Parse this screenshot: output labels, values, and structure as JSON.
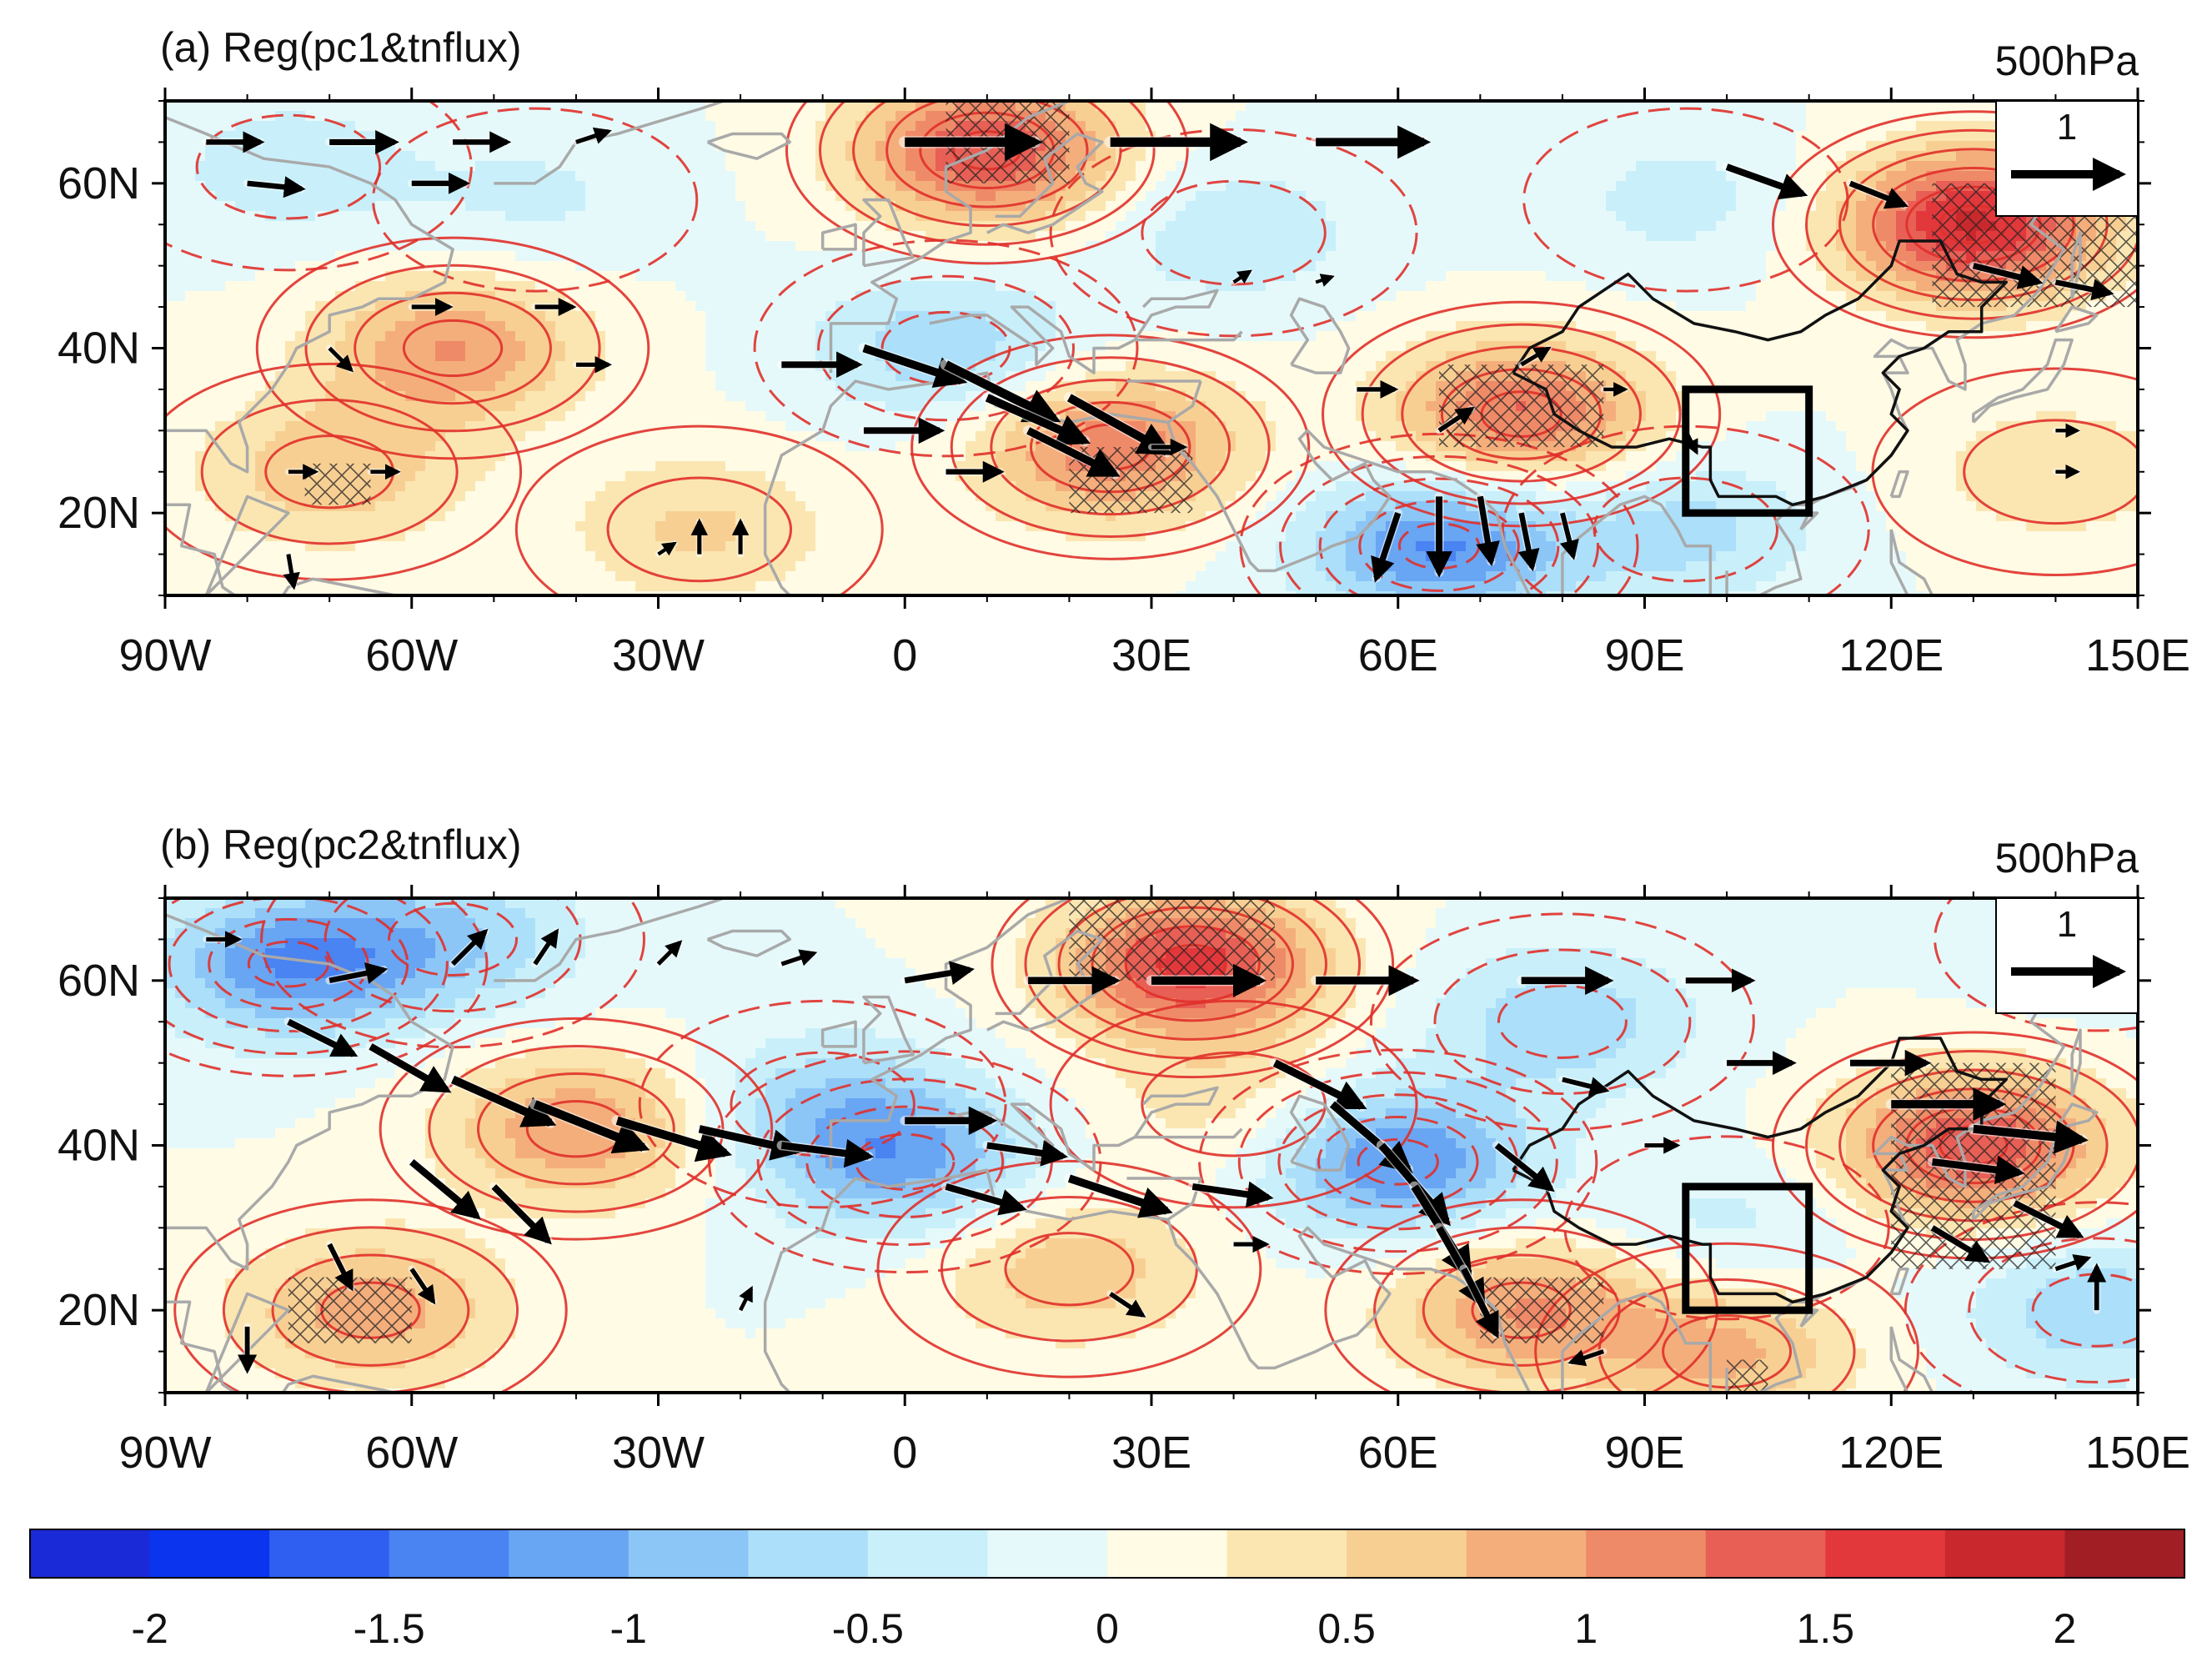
{
  "figure": {
    "colorbar": {
      "colors": [
        "#1a2ad6",
        "#0a34ee",
        "#2f5ff1",
        "#4a83f2",
        "#68a5f3",
        "#8cc6f7",
        "#acdff9",
        "#c9f0fa",
        "#e5f9fb",
        "#fffbe5",
        "#fbe6b2",
        "#f8cf93",
        "#f4ae7c",
        "#ef8a68",
        "#e85f55",
        "#e2383c",
        "#c9282c",
        "#a11e25"
      ],
      "ticks": [
        "-2",
        "-1.5",
        "-1",
        "-0.5",
        "0",
        "0.5",
        "1",
        "1.5",
        "2"
      ],
      "tick_values": [
        -2,
        -1.5,
        -1,
        -0.5,
        0,
        0.5,
        1,
        1.5,
        2
      ],
      "vmin": -2.25,
      "vmax": 2.25
    },
    "contour_color": "#e0302a",
    "coast_color": "#a9a9a9",
    "vector_color": "#000000"
  },
  "chart_data": [
    {
      "type": "heatmap",
      "panel": "a",
      "title": "(a) Reg(pc1&tnflux)",
      "level": "500hPa",
      "x_ticks": [
        "90W",
        "60W",
        "30W",
        "0",
        "30E",
        "60E",
        "90E",
        "120E",
        "150E"
      ],
      "x_tick_values": [
        -90,
        -60,
        -30,
        0,
        30,
        60,
        90,
        120,
        150
      ],
      "y_ticks": [
        "60N",
        "40N",
        "20N"
      ],
      "y_tick_values": [
        60,
        40,
        20
      ],
      "xlim": [
        -90,
        150
      ],
      "ylim": [
        10,
        70
      ],
      "reference_vector": {
        "label": "1",
        "magnitude": 1
      },
      "anomaly_centers": [
        {
          "lon": -55,
          "lat": 40,
          "value": 1.0
        },
        {
          "lon": -70,
          "lat": 25,
          "value": 0.7
        },
        {
          "lon": -25,
          "lat": 18,
          "value": 0.55
        },
        {
          "lon": -75,
          "lat": 62,
          "value": -0.4
        },
        {
          "lon": -45,
          "lat": 58,
          "value": -0.3
        },
        {
          "lon": 10,
          "lat": 64,
          "value": 1.5
        },
        {
          "lon": 5,
          "lat": 40,
          "value": -0.7
        },
        {
          "lon": 25,
          "lat": 28,
          "value": 1.2
        },
        {
          "lon": 40,
          "lat": 54,
          "value": -0.45
        },
        {
          "lon": 65,
          "lat": 16,
          "value": -1.3
        },
        {
          "lon": 75,
          "lat": 32,
          "value": 1.3
        },
        {
          "lon": 95,
          "lat": 58,
          "value": -0.35
        },
        {
          "lon": 130,
          "lat": 55,
          "value": 1.8
        },
        {
          "lon": 140,
          "lat": 25,
          "value": 0.45
        },
        {
          "lon": 95,
          "lat": 18,
          "value": -0.6
        }
      ],
      "hatched_regions": [
        {
          "lon_range": [
            5,
            20
          ],
          "lat_range": [
            60,
            70
          ]
        },
        {
          "lon_range": [
            20,
            35
          ],
          "lat_range": [
            20,
            28
          ]
        },
        {
          "lon_range": [
            65,
            85
          ],
          "lat_range": [
            28,
            38
          ]
        },
        {
          "lon_range": [
            125,
            150
          ],
          "lat_range": [
            45,
            60
          ]
        },
        {
          "lon_range": [
            -73,
            -65
          ],
          "lat_range": [
            21,
            26
          ]
        }
      ],
      "flux_vectors": [
        {
          "lon": -85,
          "lat": 65,
          "u": 0.5,
          "v": 0.0
        },
        {
          "lon": -70,
          "lat": 65,
          "u": 0.6,
          "v": 0.0
        },
        {
          "lon": -55,
          "lat": 65,
          "u": 0.5,
          "v": 0.0
        },
        {
          "lon": -80,
          "lat": 60,
          "u": 0.5,
          "v": -0.05
        },
        {
          "lon": -60,
          "lat": 60,
          "u": 0.5,
          "v": 0.0
        },
        {
          "lon": -40,
          "lat": 65,
          "u": 0.3,
          "v": 0.1
        },
        {
          "lon": -60,
          "lat": 45,
          "u": 0.35,
          "v": 0.0
        },
        {
          "lon": -45,
          "lat": 45,
          "u": 0.35,
          "v": 0.0
        },
        {
          "lon": -40,
          "lat": 38,
          "u": 0.3,
          "v": 0.0
        },
        {
          "lon": -70,
          "lat": 40,
          "u": 0.2,
          "v": -0.2
        },
        {
          "lon": -75,
          "lat": 25,
          "u": 0.25,
          "v": 0.0
        },
        {
          "lon": -65,
          "lat": 25,
          "u": 0.25,
          "v": 0.0
        },
        {
          "lon": -75,
          "lat": 15,
          "u": 0.05,
          "v": -0.3
        },
        {
          "lon": -30,
          "lat": 15,
          "u": 0.15,
          "v": 0.1
        },
        {
          "lon": -25,
          "lat": 15,
          "u": 0.0,
          "v": 0.3
        },
        {
          "lon": -20,
          "lat": 15,
          "u": 0.0,
          "v": 0.3
        },
        {
          "lon": 0,
          "lat": 65,
          "u": 1.2,
          "v": 0.0
        },
        {
          "lon": 25,
          "lat": 65,
          "u": 1.2,
          "v": 0.0
        },
        {
          "lon": 50,
          "lat": 65,
          "u": 1.0,
          "v": 0.0
        },
        {
          "lon": 100,
          "lat": 62,
          "u": 0.7,
          "v": -0.25
        },
        {
          "lon": 115,
          "lat": 60,
          "u": 0.5,
          "v": -0.2
        },
        {
          "lon": 130,
          "lat": 50,
          "u": 0.6,
          "v": -0.15
        },
        {
          "lon": 140,
          "lat": 48,
          "u": 0.5,
          "v": -0.1
        },
        {
          "lon": -15,
          "lat": 38,
          "u": 0.7,
          "v": 0.0
        },
        {
          "lon": -5,
          "lat": 40,
          "u": 0.9,
          "v": -0.3
        },
        {
          "lon": 5,
          "lat": 38,
          "u": 1.0,
          "v": -0.5
        },
        {
          "lon": 10,
          "lat": 34,
          "u": 0.9,
          "v": -0.4
        },
        {
          "lon": 15,
          "lat": 30,
          "u": 0.8,
          "v": -0.4
        },
        {
          "lon": 20,
          "lat": 34,
          "u": 0.9,
          "v": -0.5
        },
        {
          "lon": -5,
          "lat": 30,
          "u": 0.7,
          "v": 0.0
        },
        {
          "lon": 5,
          "lat": 25,
          "u": 0.5,
          "v": 0.0
        },
        {
          "lon": 30,
          "lat": 28,
          "u": 0.3,
          "v": 0.0
        },
        {
          "lon": 55,
          "lat": 35,
          "u": 0.35,
          "v": 0.0
        },
        {
          "lon": 65,
          "lat": 30,
          "u": 0.3,
          "v": 0.2
        },
        {
          "lon": 75,
          "lat": 38,
          "u": 0.25,
          "v": 0.15
        },
        {
          "lon": 85,
          "lat": 35,
          "u": 0.2,
          "v": 0.0
        },
        {
          "lon": 60,
          "lat": 20,
          "u": -0.2,
          "v": -0.6
        },
        {
          "lon": 65,
          "lat": 22,
          "u": 0.0,
          "v": -0.7
        },
        {
          "lon": 70,
          "lat": 22,
          "u": 0.1,
          "v": -0.6
        },
        {
          "lon": 75,
          "lat": 20,
          "u": 0.1,
          "v": -0.5
        },
        {
          "lon": 80,
          "lat": 20,
          "u": 0.1,
          "v": -0.4
        },
        {
          "lon": 95,
          "lat": 30,
          "u": 0.1,
          "v": -0.2
        },
        {
          "lon": 140,
          "lat": 30,
          "u": 0.2,
          "v": 0.0
        },
        {
          "lon": 140,
          "lat": 25,
          "u": 0.2,
          "v": 0.0
        },
        {
          "lon": 40,
          "lat": 48,
          "u": 0.15,
          "v": 0.1
        },
        {
          "lon": 50,
          "lat": 48,
          "u": 0.15,
          "v": 0.05
        }
      ],
      "target_box": {
        "lon_range": [
          95,
          110
        ],
        "lat_range": [
          20,
          35
        ]
      }
    },
    {
      "type": "heatmap",
      "panel": "b",
      "title": "(b) Reg(pc2&tnflux)",
      "level": "500hPa",
      "x_ticks": [
        "90W",
        "60W",
        "30W",
        "0",
        "30E",
        "60E",
        "90E",
        "120E",
        "150E"
      ],
      "x_tick_values": [
        -90,
        -60,
        -30,
        0,
        30,
        60,
        90,
        120,
        150
      ],
      "y_ticks": [
        "60N",
        "40N",
        "20N"
      ],
      "y_tick_values": [
        60,
        40,
        20
      ],
      "xlim": [
        -90,
        150
      ],
      "ylim": [
        10,
        70
      ],
      "reference_vector": {
        "label": "1",
        "magnitude": 1
      },
      "anomaly_centers": [
        {
          "lon": -75,
          "lat": 62,
          "value": -1.2
        },
        {
          "lon": -55,
          "lat": 65,
          "value": -0.7
        },
        {
          "lon": -40,
          "lat": 42,
          "value": 1.0
        },
        {
          "lon": -65,
          "lat": 20,
          "value": 0.9
        },
        {
          "lon": -10,
          "lat": 45,
          "value": -0.6
        },
        {
          "lon": 0,
          "lat": 38,
          "value": -1.0
        },
        {
          "lon": 35,
          "lat": 62,
          "value": 1.6
        },
        {
          "lon": 40,
          "lat": 45,
          "value": 0.4
        },
        {
          "lon": 20,
          "lat": 25,
          "value": 0.7
        },
        {
          "lon": 60,
          "lat": 38,
          "value": -1.3
        },
        {
          "lon": 80,
          "lat": 55,
          "value": -0.7
        },
        {
          "lon": 75,
          "lat": 20,
          "value": 1.0
        },
        {
          "lon": 130,
          "lat": 40,
          "value": 1.5
        },
        {
          "lon": 145,
          "lat": 20,
          "value": -0.7
        },
        {
          "lon": 100,
          "lat": 30,
          "value": -0.35
        },
        {
          "lon": 100,
          "lat": 15,
          "value": 0.8
        },
        {
          "lon": 145,
          "lat": 65,
          "value": -0.2
        }
      ],
      "hatched_regions": [
        {
          "lon_range": [
            20,
            45
          ],
          "lat_range": [
            60,
            70
          ]
        },
        {
          "lon_range": [
            -75,
            -60
          ],
          "lat_range": [
            16,
            24
          ]
        },
        {
          "lon_range": [
            70,
            85
          ],
          "lat_range": [
            16,
            24
          ]
        },
        {
          "lon_range": [
            120,
            140
          ],
          "lat_range": [
            25,
            50
          ]
        },
        {
          "lon_range": [
            100,
            105
          ],
          "lat_range": [
            10,
            14
          ]
        }
      ],
      "flux_vectors": [
        {
          "lon": -85,
          "lat": 65,
          "u": 0.3,
          "v": 0.0
        },
        {
          "lon": -70,
          "lat": 60,
          "u": 0.5,
          "v": 0.1
        },
        {
          "lon": -55,
          "lat": 62,
          "u": 0.3,
          "v": 0.3
        },
        {
          "lon": -45,
          "lat": 62,
          "u": 0.2,
          "v": 0.3
        },
        {
          "lon": -30,
          "lat": 62,
          "u": 0.2,
          "v": 0.2
        },
        {
          "lon": -15,
          "lat": 62,
          "u": 0.3,
          "v": 0.1
        },
        {
          "lon": 0,
          "lat": 60,
          "u": 0.6,
          "v": 0.1
        },
        {
          "lon": 15,
          "lat": 60,
          "u": 0.8,
          "v": 0.0
        },
        {
          "lon": 30,
          "lat": 60,
          "u": 1.0,
          "v": 0.0
        },
        {
          "lon": 50,
          "lat": 60,
          "u": 0.9,
          "v": 0.0
        },
        {
          "lon": 75,
          "lat": 60,
          "u": 0.8,
          "v": 0.0
        },
        {
          "lon": 95,
          "lat": 60,
          "u": 0.6,
          "v": 0.0
        },
        {
          "lon": -75,
          "lat": 55,
          "u": 0.6,
          "v": -0.3
        },
        {
          "lon": -65,
          "lat": 52,
          "u": 0.7,
          "v": -0.4
        },
        {
          "lon": -55,
          "lat": 48,
          "u": 0.9,
          "v": -0.4
        },
        {
          "lon": -45,
          "lat": 45,
          "u": 1.0,
          "v": -0.4
        },
        {
          "lon": -35,
          "lat": 43,
          "u": 1.0,
          "v": -0.3
        },
        {
          "lon": -25,
          "lat": 42,
          "u": 0.9,
          "v": -0.2
        },
        {
          "lon": -15,
          "lat": 40,
          "u": 0.8,
          "v": -0.1
        },
        {
          "lon": -60,
          "lat": 38,
          "u": 0.6,
          "v": -0.5
        },
        {
          "lon": -50,
          "lat": 35,
          "u": 0.5,
          "v": -0.5
        },
        {
          "lon": -70,
          "lat": 28,
          "u": 0.2,
          "v": -0.4
        },
        {
          "lon": -60,
          "lat": 25,
          "u": 0.2,
          "v": -0.3
        },
        {
          "lon": -80,
          "lat": 18,
          "u": 0.0,
          "v": -0.4
        },
        {
          "lon": 0,
          "lat": 43,
          "u": 0.8,
          "v": 0.0
        },
        {
          "lon": 10,
          "lat": 40,
          "u": 0.7,
          "v": -0.1
        },
        {
          "lon": 20,
          "lat": 36,
          "u": 0.9,
          "v": -0.3
        },
        {
          "lon": 5,
          "lat": 35,
          "u": 0.7,
          "v": -0.2
        },
        {
          "lon": 35,
          "lat": 35,
          "u": 0.7,
          "v": -0.1
        },
        {
          "lon": 45,
          "lat": 50,
          "u": 0.8,
          "v": -0.4
        },
        {
          "lon": 52,
          "lat": 45,
          "u": 0.7,
          "v": -0.6
        },
        {
          "lon": 58,
          "lat": 40,
          "u": 0.6,
          "v": -0.7
        },
        {
          "lon": 62,
          "lat": 35,
          "u": 0.5,
          "v": -0.8
        },
        {
          "lon": 65,
          "lat": 30,
          "u": 0.4,
          "v": -0.7
        },
        {
          "lon": 68,
          "lat": 25,
          "u": 0.3,
          "v": -0.6
        },
        {
          "lon": 72,
          "lat": 40,
          "u": 0.5,
          "v": -0.4
        },
        {
          "lon": 80,
          "lat": 48,
          "u": 0.4,
          "v": -0.1
        },
        {
          "lon": 100,
          "lat": 50,
          "u": 0.6,
          "v": 0.0
        },
        {
          "lon": 115,
          "lat": 50,
          "u": 0.7,
          "v": 0.0
        },
        {
          "lon": 120,
          "lat": 45,
          "u": 1.0,
          "v": 0.0
        },
        {
          "lon": 130,
          "lat": 42,
          "u": 1.0,
          "v": -0.1
        },
        {
          "lon": 125,
          "lat": 38,
          "u": 0.8,
          "v": -0.1
        },
        {
          "lon": 135,
          "lat": 33,
          "u": 0.6,
          "v": -0.3
        },
        {
          "lon": 125,
          "lat": 30,
          "u": 0.5,
          "v": -0.3
        },
        {
          "lon": 145,
          "lat": 20,
          "u": 0.0,
          "v": 0.4
        },
        {
          "lon": 140,
          "lat": 25,
          "u": 0.3,
          "v": 0.1
        },
        {
          "lon": 40,
          "lat": 28,
          "u": 0.3,
          "v": 0.0
        },
        {
          "lon": 25,
          "lat": 22,
          "u": 0.3,
          "v": -0.2
        },
        {
          "lon": 90,
          "lat": 40,
          "u": 0.3,
          "v": 0.0
        },
        {
          "lon": -20,
          "lat": 20,
          "u": 0.1,
          "v": 0.2
        },
        {
          "lon": 85,
          "lat": 15,
          "u": -0.3,
          "v": -0.1
        }
      ],
      "target_box": {
        "lon_range": [
          95,
          110
        ],
        "lat_range": [
          20,
          35
        ]
      }
    }
  ]
}
